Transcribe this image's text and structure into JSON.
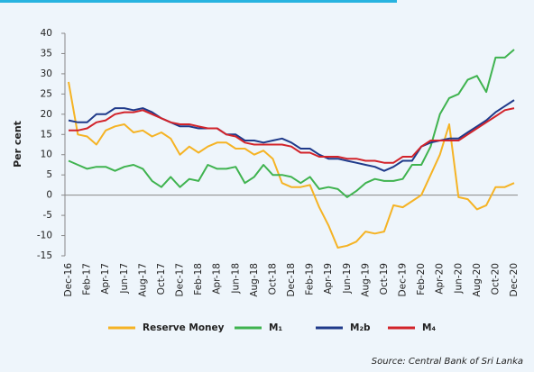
{
  "chart_data": {
    "type": "line",
    "y_label": "Per cent",
    "source": "Source: Central Bank of Sri Lanka",
    "categories": [
      "Dec-16",
      null,
      "Feb-17",
      null,
      "Apr-17",
      null,
      "Jun-17",
      null,
      "Aug-17",
      null,
      "Oct-17",
      null,
      "Dec-17",
      null,
      "Feb-18",
      null,
      "Apr-18",
      null,
      "Jun-18",
      null,
      "Aug-18",
      null,
      "Oct-18",
      null,
      "Dec-18",
      null,
      "Feb-19",
      null,
      "Apr-19",
      null,
      "Jun-19",
      null,
      "Aug-19",
      null,
      "Oct-19",
      null,
      "Dec-19",
      null,
      "Feb-20",
      null,
      "Apr-20",
      null,
      "Jun-20",
      null,
      "Aug-20",
      null,
      "Oct-20",
      null,
      "Dec-20"
    ],
    "series": [
      {
        "name": "Reserve Money",
        "color": "#f5b324",
        "values": [
          28,
          15,
          14.5,
          12.5,
          16,
          17,
          17.5,
          15.5,
          16,
          14.5,
          15.5,
          14,
          10,
          12,
          10.5,
          12,
          13,
          13,
          11.5,
          11.5,
          10,
          11,
          9,
          3,
          2,
          2,
          2.5,
          -3,
          -7.5,
          -13,
          -12.5,
          -11.5,
          -9,
          -9.5,
          -9,
          -2.5,
          -3,
          -1.5,
          0,
          5,
          10,
          17.5,
          -0.5,
          -1,
          -3.5,
          -2.5,
          2,
          2,
          3
        ]
      },
      {
        "name": "M₁",
        "color": "#3fb34f",
        "values": [
          8.5,
          7.5,
          6.5,
          7,
          7,
          6,
          7,
          7.5,
          6.5,
          3.5,
          2,
          4.5,
          2,
          4,
          3.5,
          7.5,
          6.5,
          6.5,
          7,
          3,
          4.5,
          7.5,
          5,
          5,
          4.5,
          3,
          4.5,
          1.5,
          2,
          1.5,
          -0.5,
          1,
          3,
          4,
          3.5,
          3.5,
          4,
          7.5,
          7.5,
          12,
          20,
          24,
          25,
          28.5,
          29.5,
          25.5,
          34,
          34,
          36
        ]
      },
      {
        "name": "M₂b",
        "color": "#1f3a8a",
        "values": [
          18.5,
          18,
          18,
          20,
          20,
          21.5,
          21.5,
          21,
          21.5,
          20.5,
          19,
          18,
          17,
          17,
          16.5,
          16.5,
          16.5,
          15,
          15,
          13.5,
          13.5,
          13,
          13.5,
          14,
          13,
          11.5,
          11.5,
          10,
          9,
          9,
          8.5,
          8,
          7.5,
          7,
          6,
          7,
          8.5,
          8.5,
          12,
          13,
          13.5,
          14,
          14,
          15.5,
          17,
          18.5,
          20.5,
          22,
          23.5
        ]
      },
      {
        "name": "M₄",
        "color": "#d2232a",
        "values": [
          16,
          16,
          16.5,
          18,
          18.5,
          20,
          20.5,
          20.5,
          21,
          20,
          19,
          18,
          17.5,
          17.5,
          17,
          16.5,
          16.5,
          15,
          14.5,
          13,
          12.5,
          12.5,
          12.5,
          12.5,
          12,
          10.5,
          10.5,
          9.5,
          9.5,
          9.5,
          9,
          9,
          8.5,
          8.5,
          8,
          8,
          9.5,
          9.5,
          12,
          13.5,
          13.5,
          13.5,
          13.5,
          15,
          16.5,
          18,
          19.5,
          21,
          21.5
        ]
      }
    ],
    "ylim": [
      -15,
      40
    ],
    "yticks": [
      -15,
      -10,
      -5,
      0,
      5,
      10,
      15,
      20,
      25,
      30,
      35,
      40
    ],
    "grid": false,
    "legend": "bottom"
  }
}
